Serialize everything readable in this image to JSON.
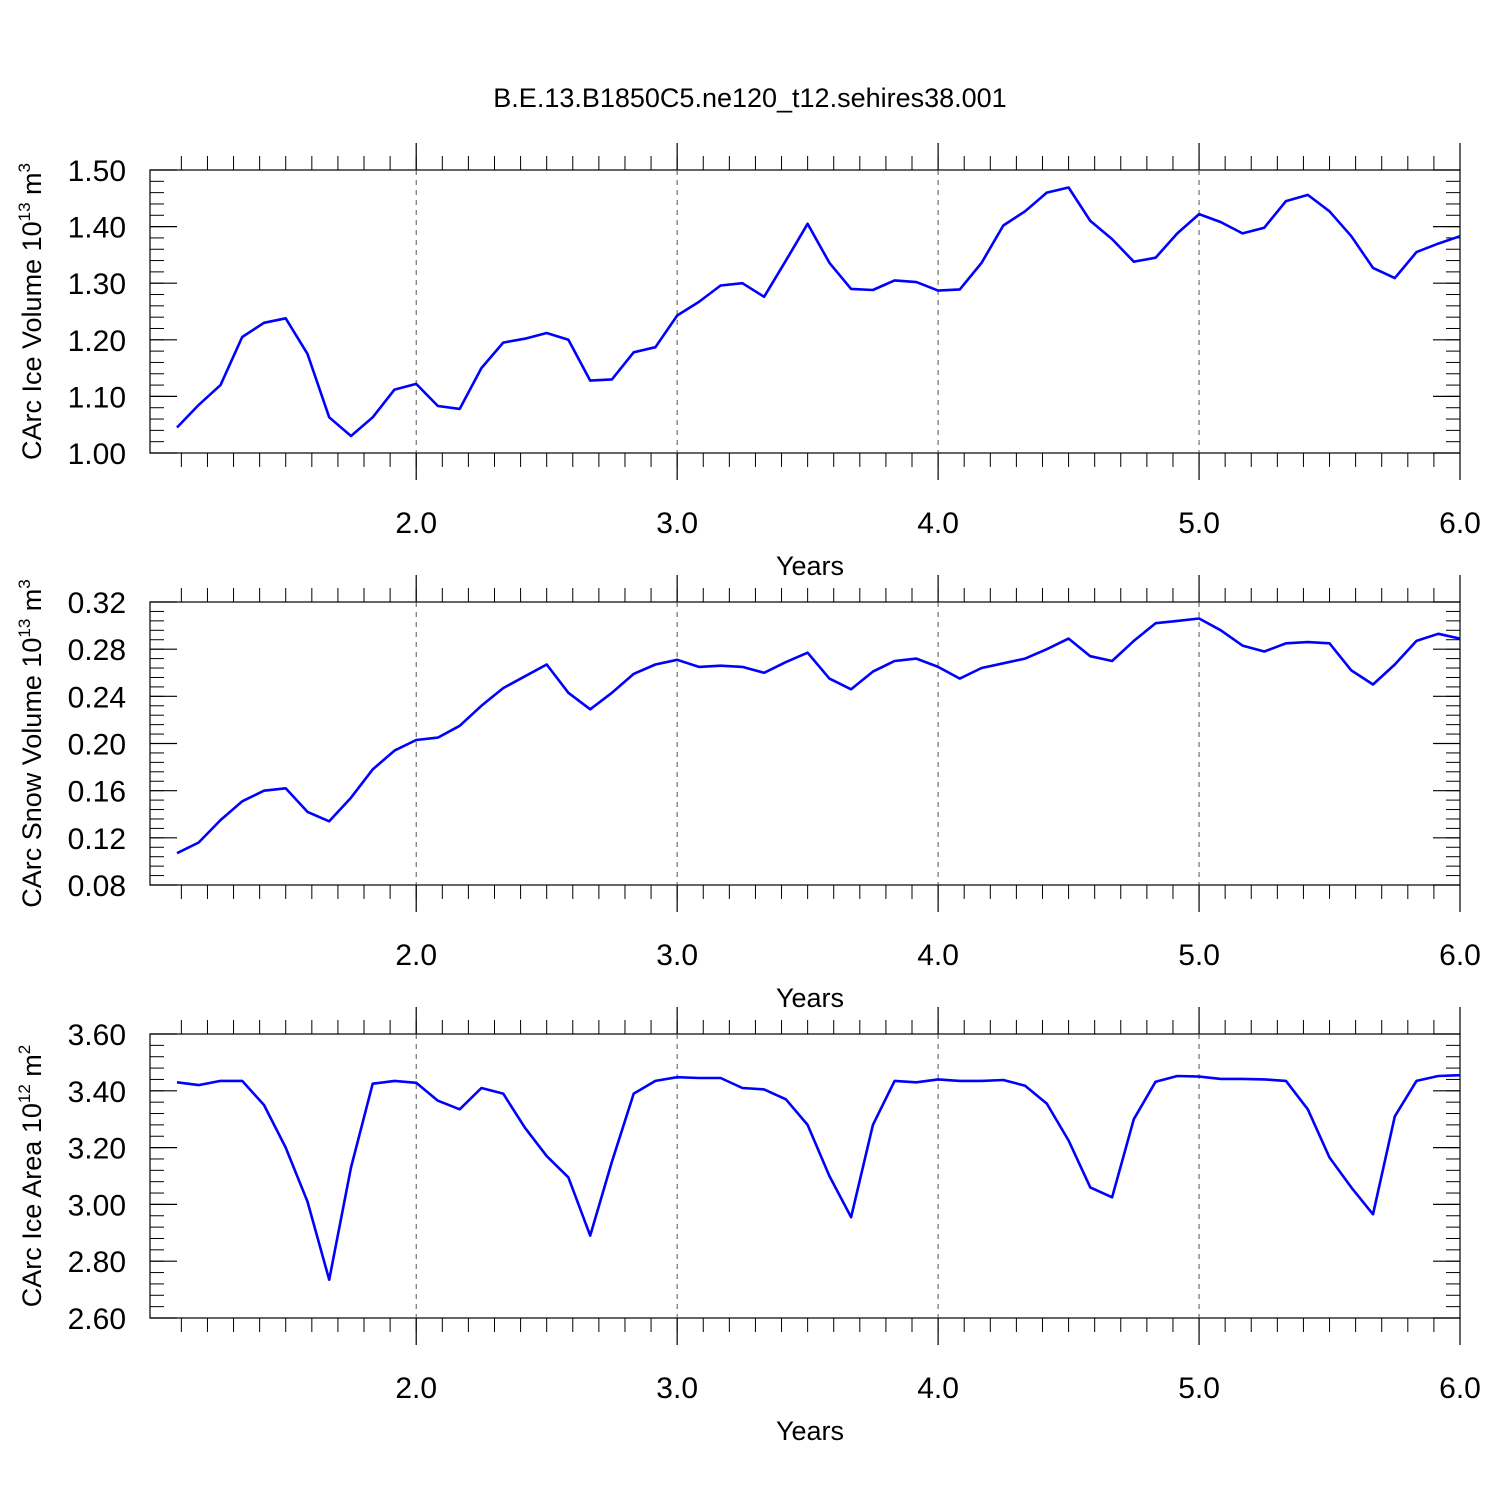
{
  "title": "B.E.13.B1850C5.ne120_t12.sehires38.001",
  "line_color": "#0000ff",
  "chart_data": [
    {
      "type": "line",
      "ylabel_main": "CArc Ice Volume 10",
      "ylabel_exp": "13",
      "ylabel_unit": " m",
      "ylabel_unit_exp": "3",
      "xlabel": "Years",
      "xlim": [
        1.0833,
        6.0
      ],
      "ylim": [
        1.0,
        1.5
      ],
      "yticks": [
        1.0,
        1.1,
        1.2,
        1.3,
        1.4,
        1.5
      ],
      "ytick_labels": [
        "1.00",
        "1.10",
        "1.20",
        "1.30",
        "1.40",
        "1.50"
      ],
      "xticks": [
        2.0,
        3.0,
        4.0,
        5.0,
        6.0
      ],
      "xtick_labels": [
        "2.0",
        "3.0",
        "4.0",
        "5.0",
        "6.0"
      ],
      "y_minor_step": 0.02,
      "x_minor_step": 0.1,
      "grid": "dashed vertical at major x ticks",
      "series": [
        {
          "values": [
            1.045,
            1.085,
            1.12,
            1.205,
            1.23,
            1.238,
            1.175,
            1.063,
            1.03,
            1.063,
            1.112,
            1.122,
            1.083,
            1.078,
            1.15,
            1.195,
            1.202,
            1.212,
            1.2,
            1.128,
            1.13,
            1.178,
            1.187,
            1.243,
            1.267,
            1.296,
            1.3,
            1.276,
            1.34,
            1.405,
            1.336,
            1.29,
            1.288,
            1.305,
            1.302,
            1.287,
            1.289,
            1.336,
            1.402,
            1.427,
            1.46,
            1.469,
            1.41,
            1.378,
            1.338,
            1.345,
            1.388,
            1.422,
            1.408,
            1.388,
            1.398,
            1.445,
            1.456,
            1.427,
            1.383,
            1.327,
            1.309,
            1.355,
            1.37,
            1.383
          ]
        }
      ]
    },
    {
      "type": "line",
      "ylabel_main": "CArc Snow Volume 10",
      "ylabel_exp": "13",
      "ylabel_unit": " m",
      "ylabel_unit_exp": "3",
      "xlabel": "Years",
      "xlim": [
        1.0833,
        6.0
      ],
      "ylim": [
        0.08,
        0.32
      ],
      "yticks": [
        0.08,
        0.12,
        0.16,
        0.2,
        0.24,
        0.28,
        0.32
      ],
      "ytick_labels": [
        "0.08",
        "0.12",
        "0.16",
        "0.20",
        "0.24",
        "0.28",
        "0.32"
      ],
      "xticks": [
        2.0,
        3.0,
        4.0,
        5.0,
        6.0
      ],
      "xtick_labels": [
        "2.0",
        "3.0",
        "4.0",
        "5.0",
        "6.0"
      ],
      "y_minor_step": 0.008,
      "x_minor_step": 0.1,
      "grid": "dashed vertical at major x ticks",
      "series": [
        {
          "values": [
            0.107,
            0.116,
            0.135,
            0.151,
            0.16,
            0.162,
            0.142,
            0.134,
            0.154,
            0.178,
            0.194,
            0.203,
            0.205,
            0.215,
            0.232,
            0.247,
            0.257,
            0.267,
            0.243,
            0.229,
            0.243,
            0.259,
            0.267,
            0.271,
            0.265,
            0.266,
            0.265,
            0.26,
            0.269,
            0.277,
            0.255,
            0.246,
            0.261,
            0.27,
            0.272,
            0.265,
            0.255,
            0.264,
            0.268,
            0.272,
            0.28,
            0.289,
            0.274,
            0.27,
            0.287,
            0.302,
            0.304,
            0.306,
            0.296,
            0.283,
            0.278,
            0.285,
            0.286,
            0.285,
            0.262,
            0.25,
            0.267,
            0.287,
            0.293,
            0.289
          ]
        }
      ]
    },
    {
      "type": "line",
      "ylabel_main": "CArc Ice Area 10",
      "ylabel_exp": "12",
      "ylabel_unit": " m",
      "ylabel_unit_exp": "2",
      "xlabel": "Years",
      "xlim": [
        1.0833,
        6.0
      ],
      "ylim": [
        2.6,
        3.6
      ],
      "yticks": [
        2.6,
        2.8,
        3.0,
        3.2,
        3.4,
        3.6
      ],
      "ytick_labels": [
        "2.60",
        "2.80",
        "3.00",
        "3.20",
        "3.40",
        "3.60"
      ],
      "xticks": [
        2.0,
        3.0,
        4.0,
        5.0,
        6.0
      ],
      "xtick_labels": [
        "2.0",
        "3.0",
        "4.0",
        "5.0",
        "6.0"
      ],
      "y_minor_step": 0.04,
      "x_minor_step": 0.1,
      "grid": "dashed vertical at major x ticks",
      "series": [
        {
          "values": [
            3.43,
            3.42,
            3.435,
            3.435,
            3.35,
            3.2,
            3.01,
            2.735,
            3.13,
            3.425,
            3.435,
            3.428,
            3.365,
            3.335,
            3.41,
            3.39,
            3.27,
            3.17,
            3.095,
            2.89,
            3.15,
            3.39,
            3.435,
            3.448,
            3.445,
            3.445,
            3.41,
            3.405,
            3.37,
            3.28,
            3.1,
            2.955,
            3.28,
            3.435,
            3.43,
            3.44,
            3.435,
            3.435,
            3.438,
            3.418,
            3.355,
            3.225,
            3.06,
            3.025,
            3.3,
            3.432,
            3.452,
            3.45,
            3.442,
            3.442,
            3.44,
            3.435,
            3.335,
            3.165,
            3.06,
            2.965,
            3.31,
            3.435,
            3.452,
            3.455
          ]
        }
      ]
    }
  ]
}
